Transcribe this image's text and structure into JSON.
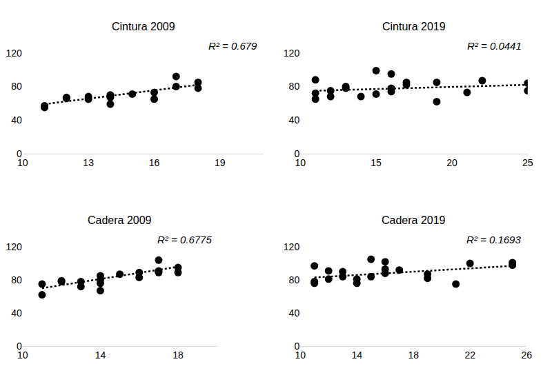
{
  "chart_data": [
    {
      "type": "scatter",
      "title": "Cintura 2009",
      "annotation": "R² = 0.679",
      "x": [
        11,
        11,
        12,
        12,
        13,
        13,
        14,
        14,
        14,
        15,
        16,
        16,
        17,
        17,
        18,
        18
      ],
      "values": [
        57,
        55,
        67,
        66,
        68,
        65,
        70,
        59,
        67,
        71,
        73,
        65,
        92,
        80,
        85,
        78
      ],
      "trend": {
        "x": [
          11,
          18
        ],
        "y": [
          59,
          82
        ],
        "line_style": "dotted"
      },
      "color": "#000000",
      "marker": "circle",
      "grid": false,
      "xlim": [
        10,
        21
      ],
      "xticks": [
        10,
        13,
        16,
        19
      ],
      "ylim": [
        0,
        120
      ],
      "yticks": [
        0,
        40,
        80,
        120
      ]
    },
    {
      "type": "scatter",
      "title": "Cintura 2019",
      "annotation": "R² = 0.0441",
      "x": [
        11,
        11,
        11,
        12,
        12,
        13,
        13,
        14,
        15,
        15,
        16,
        16,
        16,
        17,
        17,
        19,
        19,
        21,
        22,
        25,
        25
      ],
      "values": [
        88,
        72,
        65,
        75,
        68,
        80,
        78,
        68,
        99,
        71,
        95,
        78,
        74,
        85,
        82,
        85,
        62,
        73,
        87,
        84,
        75
      ],
      "trend": {
        "x": [
          11,
          25
        ],
        "y": [
          75,
          82
        ],
        "line_style": "dotted"
      },
      "color": "#000000",
      "marker": "circle",
      "grid": false,
      "xlim": [
        10,
        25
      ],
      "xticks": [
        10,
        15,
        20,
        25
      ],
      "ylim": [
        0,
        120
      ],
      "yticks": [
        0,
        40,
        80,
        120
      ]
    },
    {
      "type": "scatter",
      "title": "Cadera 2009",
      "annotation": "R² = 0.6775",
      "x": [
        11,
        11,
        12,
        12,
        13,
        13,
        14,
        14,
        14,
        14,
        15,
        16,
        16,
        17,
        17,
        17,
        18,
        18
      ],
      "values": [
        75,
        62,
        79,
        78,
        78,
        72,
        85,
        80,
        76,
        67,
        87,
        89,
        83,
        104,
        91,
        89,
        95,
        89
      ],
      "trend": {
        "x": [
          11,
          18
        ],
        "y": [
          70,
          96
        ],
        "line_style": "dotted"
      },
      "color": "#000000",
      "marker": "circle",
      "grid": false,
      "xlim": [
        10,
        20
      ],
      "xticks": [
        10,
        14,
        18
      ],
      "ylim": [
        0,
        120
      ],
      "yticks": [
        0,
        40,
        80,
        120
      ]
    },
    {
      "type": "scatter",
      "title": "Cadera 2019",
      "annotation": "R² = 0.1693",
      "x": [
        11,
        11,
        11,
        12,
        12,
        13,
        13,
        14,
        14,
        15,
        15,
        16,
        16,
        16,
        17,
        19,
        19,
        21,
        22,
        25,
        25
      ],
      "values": [
        97,
        78,
        76,
        91,
        81,
        90,
        84,
        81,
        76,
        105,
        84,
        102,
        93,
        88,
        92,
        87,
        82,
        75,
        100,
        101,
        98
      ],
      "trend": {
        "x": [
          11,
          25
        ],
        "y": [
          83,
          97
        ],
        "line_style": "dotted"
      },
      "color": "#000000",
      "marker": "circle",
      "grid": false,
      "xlim": [
        10,
        26
      ],
      "xticks": [
        10,
        14,
        18,
        22,
        26
      ],
      "ylim": [
        0,
        120
      ],
      "yticks": [
        0,
        40,
        80,
        120
      ]
    }
  ]
}
